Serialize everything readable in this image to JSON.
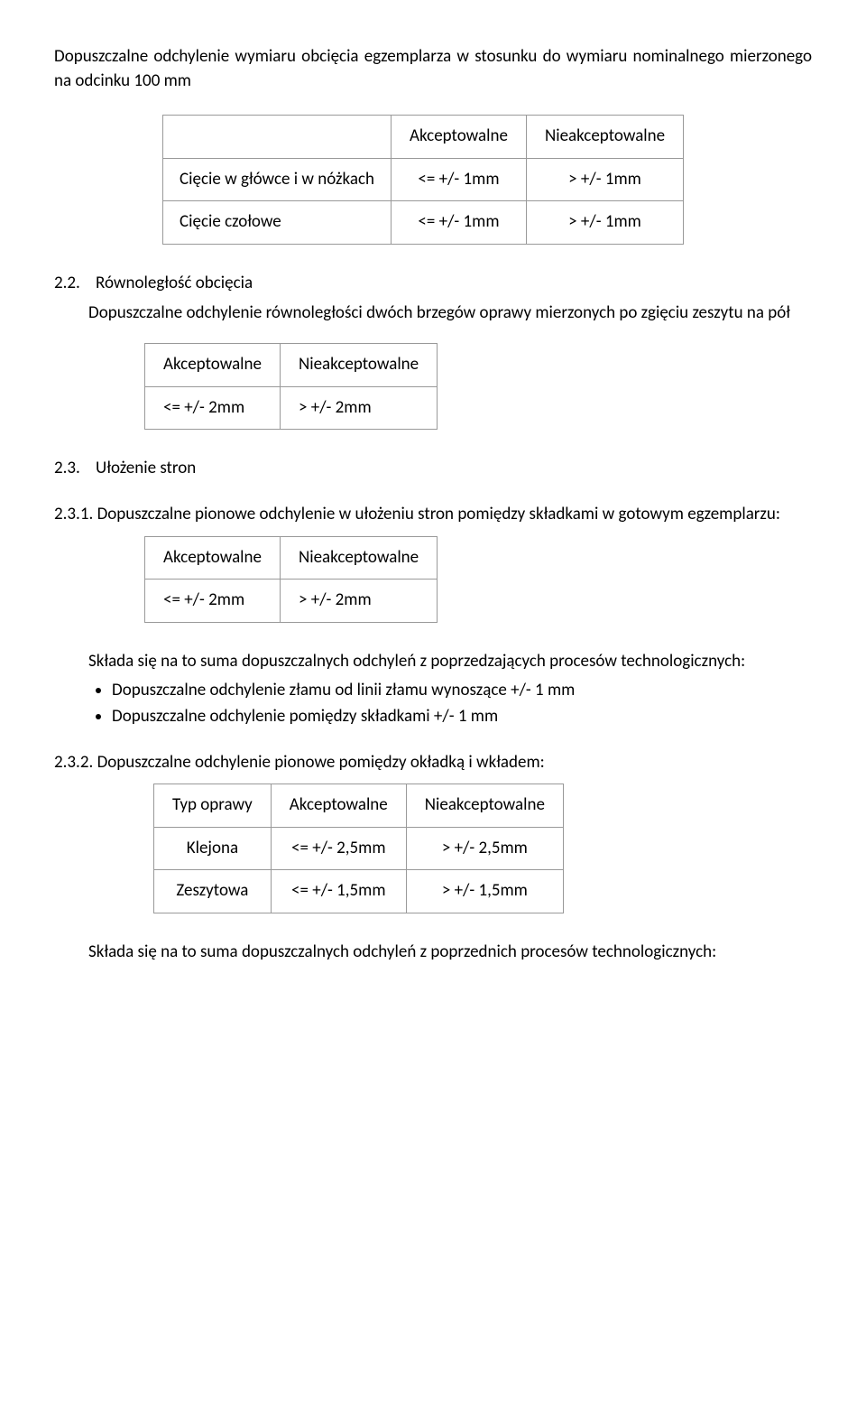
{
  "intro": "Dopuszczalne odchylenie wymiaru obcięcia egzemplarza w stosunku do wymiaru nominalnego mierzonego na odcinku 100 mm",
  "labels": {
    "acceptable": "Akceptowalne",
    "notacceptable": "Nieakceptowalne"
  },
  "table1": {
    "row1_label": "Cięcie w główce i w nóżkach",
    "row1_acc": "<= +/- 1mm",
    "row1_nacc": "> +/- 1mm",
    "row2_label": "Cięcie czołowe",
    "row2_acc": "<= +/- 1mm",
    "row2_nacc": "> +/- 1mm"
  },
  "sec22": {
    "num": "2.2.",
    "title": "Równoległość obcięcia",
    "body": "Dopuszczalne odchylenie równoległości dwóch brzegów oprawy mierzonych po zgięciu zeszytu na pół"
  },
  "table2": {
    "acc": "<= +/- 2mm",
    "nacc": "> +/- 2mm"
  },
  "sec23": {
    "num": "2.3.",
    "title": "Ułożenie stron"
  },
  "sec231": {
    "num": "2.3.1.",
    "body": "Dopuszczalne pionowe odchylenie w ułożeniu stron pomiędzy składkami w gotowym egzemplarzu:"
  },
  "table3": {
    "acc": "<= +/- 2mm",
    "nacc": "> +/- 2mm"
  },
  "sum_para": "Składa się na to suma dopuszczalnych odchyleń z poprzedzających procesów technologicznych:",
  "bullets": {
    "b1": "Dopuszczalne odchylenie złamu od linii złamu wynoszące +/- 1 mm",
    "b2": "Dopuszczalne odchylenie pomiędzy składkami +/- 1 mm"
  },
  "sec232": {
    "num": "2.3.2.",
    "body": "Dopuszczalne odchylenie pionowe pomiędzy okładką i wkładem:"
  },
  "table4": {
    "col1": "Typ oprawy",
    "col2": "Akceptowalne",
    "col3": "Nieakceptowalne",
    "r1c1": "Klejona",
    "r1c2": "<= +/- 2,5mm",
    "r1c3": "> +/- 2,5mm",
    "r2c1": "Zeszytowa",
    "r2c2": "<= +/- 1,5mm",
    "r2c3": "> +/- 1,5mm"
  },
  "final_para": "Składa się na to suma dopuszczalnych odchyleń z poprzednich procesów technologicznych:"
}
